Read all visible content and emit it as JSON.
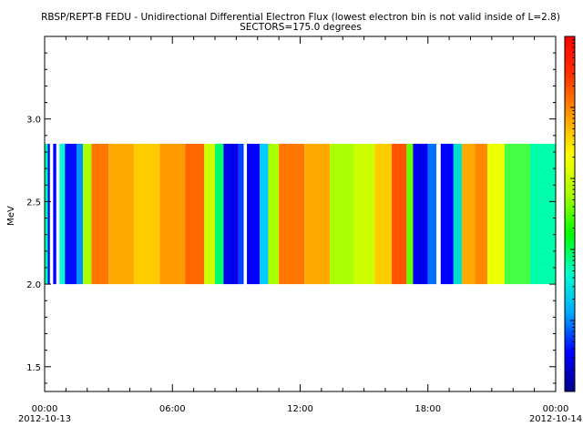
{
  "chart_data": {
    "type": "heatmap",
    "title": "RBSP/REPT-B  FEDU - Unidirectional Differential Electron Flux (lowest electron bin is not valid inside of L=2.8)",
    "subtitle": "SECTORS=175.0 degrees",
    "ylabel": "MeV",
    "xlabel": "",
    "ylim": [
      1.35,
      3.5
    ],
    "y_ticks": [
      "1.5",
      "2.0",
      "2.5",
      "3.0"
    ],
    "x_ticks": [
      {
        "time": "00:00",
        "date": "2012-10-13"
      },
      {
        "time": "06:00",
        "date": ""
      },
      {
        "time": "12:00",
        "date": ""
      },
      {
        "time": "18:00",
        "date": ""
      },
      {
        "time": "00:00",
        "date": "2012-10-14"
      }
    ],
    "xlim_hours": [
      0,
      24
    ],
    "energy_band_mev": [
      2.0,
      2.85
    ],
    "colormap": [
      "#00008b",
      "#0000ff",
      "#00aaff",
      "#00ffcc",
      "#00ff00",
      "#aaff00",
      "#ffff00",
      "#ff9900",
      "#ff3300",
      "#ff0000"
    ],
    "segments": [
      {
        "start": 0.0,
        "end": 0.15,
        "value": 0.3,
        "color": "#00ffaa"
      },
      {
        "start": 0.15,
        "end": 0.25,
        "value": 0.12,
        "color": "#0000ff"
      },
      {
        "start": 0.25,
        "end": 0.4,
        "value": 0.0,
        "color": "#ffffff"
      },
      {
        "start": 0.4,
        "end": 0.55,
        "value": 0.1,
        "color": "#0000ff"
      },
      {
        "start": 0.55,
        "end": 0.7,
        "value": 0.0,
        "color": "#ffffff"
      },
      {
        "start": 0.7,
        "end": 0.95,
        "value": 0.35,
        "color": "#00ffcc"
      },
      {
        "start": 0.95,
        "end": 1.5,
        "value": 0.08,
        "color": "#0010ff"
      },
      {
        "start": 1.5,
        "end": 1.8,
        "value": 0.2,
        "color": "#0090ff"
      },
      {
        "start": 1.8,
        "end": 2.2,
        "value": 0.55,
        "color": "#aaff00"
      },
      {
        "start": 2.2,
        "end": 3.0,
        "value": 0.78,
        "color": "#ff7700"
      },
      {
        "start": 3.0,
        "end": 4.2,
        "value": 0.7,
        "color": "#ffaa00"
      },
      {
        "start": 4.2,
        "end": 5.4,
        "value": 0.66,
        "color": "#ffcc00"
      },
      {
        "start": 5.4,
        "end": 6.6,
        "value": 0.72,
        "color": "#ff9900"
      },
      {
        "start": 6.6,
        "end": 7.5,
        "value": 0.8,
        "color": "#ff6600"
      },
      {
        "start": 7.5,
        "end": 8.0,
        "value": 0.5,
        "color": "#ccff00"
      },
      {
        "start": 8.0,
        "end": 8.4,
        "value": 0.35,
        "color": "#00ff66"
      },
      {
        "start": 8.4,
        "end": 9.1,
        "value": 0.08,
        "color": "#0000ee"
      },
      {
        "start": 9.1,
        "end": 9.35,
        "value": 0.15,
        "color": "#0040ff"
      },
      {
        "start": 9.35,
        "end": 9.5,
        "value": 0.0,
        "color": "#ffffff"
      },
      {
        "start": 9.5,
        "end": 10.1,
        "value": 0.1,
        "color": "#0000ff"
      },
      {
        "start": 10.1,
        "end": 10.5,
        "value": 0.25,
        "color": "#00ccff"
      },
      {
        "start": 10.5,
        "end": 11.0,
        "value": 0.55,
        "color": "#aaff00"
      },
      {
        "start": 11.0,
        "end": 12.2,
        "value": 0.76,
        "color": "#ff7700"
      },
      {
        "start": 12.2,
        "end": 13.4,
        "value": 0.68,
        "color": "#ffaa00"
      },
      {
        "start": 13.4,
        "end": 14.5,
        "value": 0.55,
        "color": "#aaff00"
      },
      {
        "start": 14.5,
        "end": 15.5,
        "value": 0.5,
        "color": "#ccff00"
      },
      {
        "start": 15.5,
        "end": 16.3,
        "value": 0.65,
        "color": "#ffcc00"
      },
      {
        "start": 16.3,
        "end": 17.0,
        "value": 0.8,
        "color": "#ff5500"
      },
      {
        "start": 17.0,
        "end": 17.3,
        "value": 0.45,
        "color": "#66ff00"
      },
      {
        "start": 17.3,
        "end": 18.0,
        "value": 0.08,
        "color": "#0000ee"
      },
      {
        "start": 18.0,
        "end": 18.4,
        "value": 0.2,
        "color": "#0070ff"
      },
      {
        "start": 18.4,
        "end": 18.6,
        "value": 0.0,
        "color": "#ffffff"
      },
      {
        "start": 18.6,
        "end": 19.2,
        "value": 0.1,
        "color": "#0000ff"
      },
      {
        "start": 19.2,
        "end": 19.6,
        "value": 0.3,
        "color": "#00ddcc"
      },
      {
        "start": 19.6,
        "end": 20.2,
        "value": 0.7,
        "color": "#ffaa00"
      },
      {
        "start": 20.2,
        "end": 20.8,
        "value": 0.76,
        "color": "#ff8800"
      },
      {
        "start": 20.8,
        "end": 21.6,
        "value": 0.6,
        "color": "#eeff00"
      },
      {
        "start": 21.6,
        "end": 22.8,
        "value": 0.45,
        "color": "#44ff44"
      },
      {
        "start": 22.8,
        "end": 24.0,
        "value": 0.4,
        "color": "#00ffaa"
      }
    ]
  }
}
